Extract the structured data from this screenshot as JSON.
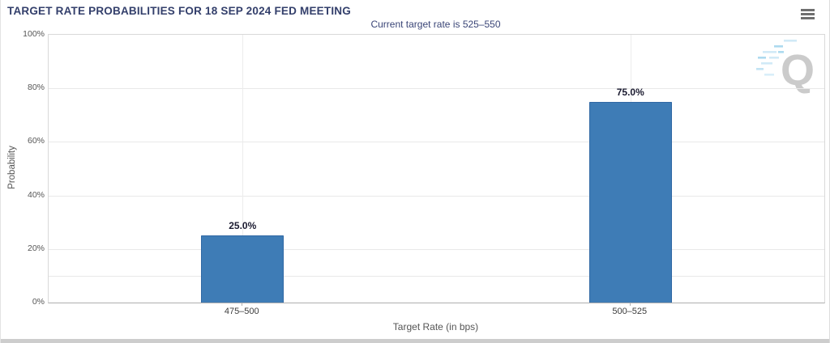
{
  "header": {
    "title": "TARGET RATE PROBABILITIES FOR 18 SEP 2024 FED MEETING"
  },
  "menu": {
    "icon": "hamburger-icon"
  },
  "watermark": {
    "icon": "quikstrike-q-logo",
    "letter": "Q"
  },
  "colors": {
    "title_text": "#333f6b",
    "subtitle_text": "#3a4577",
    "bar": "#3e7cb6",
    "bar_border": "#3068a4"
  },
  "chart_data": {
    "type": "bar",
    "title": "Current target rate is 525–550",
    "categories": [
      "475–500",
      "500–525"
    ],
    "values": [
      25.0,
      75.0
    ],
    "value_labels": [
      "25.0%",
      "75.0%"
    ],
    "xlabel": "Target Rate (in bps)",
    "ylabel": "Probability",
    "ylim": [
      0,
      100
    ],
    "yticks": [
      0,
      20,
      40,
      60,
      80,
      100
    ],
    "ytick_labels": [
      "0%",
      "20%",
      "40%",
      "60%",
      "80%",
      "100%"
    ],
    "minor_yticks": [
      10
    ],
    "grid": true,
    "legend": false,
    "bar_color": "#3e7cb6",
    "bar_border_color": "#3068a4"
  }
}
